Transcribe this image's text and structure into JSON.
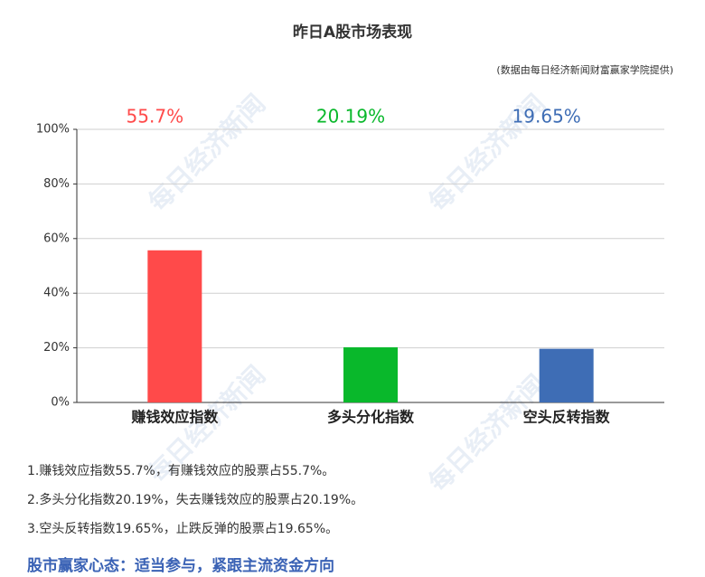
{
  "chart_data": {
    "type": "bar",
    "title": "昨日A股市场表现",
    "subtitle": "(数据由每日经济新闻财富赢家学院提供)",
    "watermark": "每日经济新闻",
    "categories": [
      "赚钱效应指数",
      "多头分化指数",
      "空头反转指数"
    ],
    "values": [
      55.7,
      20.19,
      19.65
    ],
    "value_labels": [
      "55.7%",
      "20.19%",
      "19.65%"
    ],
    "colors": [
      "#ff4a4a",
      "#09b82b",
      "#3e6db5"
    ],
    "ylim": [
      0,
      100
    ],
    "yticks": [
      {
        "value": 0,
        "label": "0%"
      },
      {
        "value": 20,
        "label": "20%"
      },
      {
        "value": 40,
        "label": "40%"
      },
      {
        "value": 60,
        "label": "60%"
      },
      {
        "value": 80,
        "label": "80%"
      },
      {
        "value": 100,
        "label": "100%"
      }
    ],
    "grid": true
  },
  "notes": [
    "1.赚钱效应指数55.7%，有赚钱效应的股票占55.7%。",
    "2.多头分化指数20.19%，失去赚钱效应的股票占20.19%。",
    "3.空头反转指数19.65%，止跌反弹的股票占19.65%。"
  ],
  "conclusion": "股市赢家心态：适当参与，紧跟主流资金方向"
}
